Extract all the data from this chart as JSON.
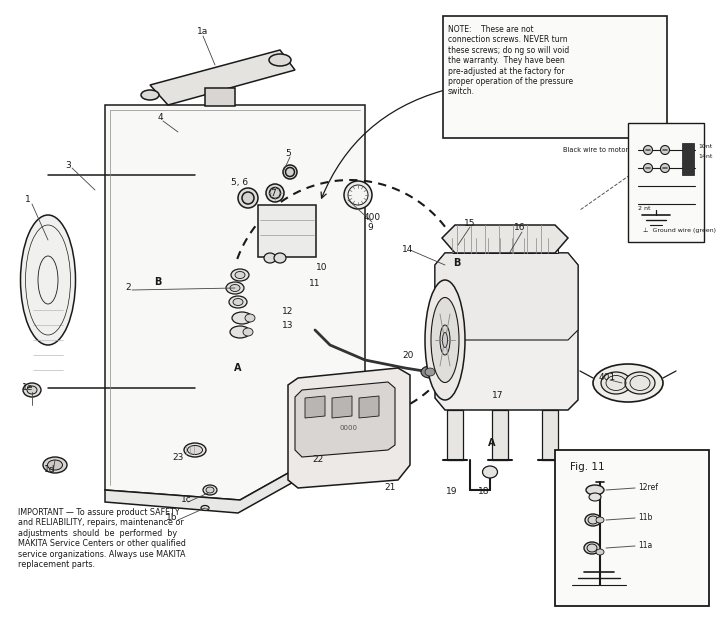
{
  "bg_color": "#ffffff",
  "line_color": "#1a1a1a",
  "text_color": "#1a1a1a",
  "note_text": "NOTE:    These are not\nconnection screws. NEVER turn\nthese screws; do ng so will void\nthe warranty.  They have been\npre-adjusted at the factory for\nproper operation of the pressure\nswitch.",
  "important_text": "IMPORTANT — To assure product SAFETY\nand RELIABILITY, repairs, maintenance or\nadjustments  should  be  performed  by\nMAKITA Service Centers or other qualified\nservice organizations. Always use MAKITA\nreplacement parts.",
  "fig11_label": "Fig. 11",
  "wire_labels": {
    "black_wire": "Black wire to motor",
    "ground": "⊥  Ground wire (green)",
    "10nt": "10nt",
    "14nt": "14nt",
    "2nt": "2 nt"
  },
  "part_labels": [
    [
      "1a",
      193,
      22
    ],
    [
      "1",
      18,
      190
    ],
    [
      "1b",
      162,
      508
    ],
    [
      "1c",
      176,
      490
    ],
    [
      "1d",
      40,
      460
    ],
    [
      "1e",
      18,
      378
    ],
    [
      "2",
      118,
      278
    ],
    [
      "3",
      58,
      155
    ],
    [
      "4",
      150,
      108
    ],
    [
      "5",
      278,
      143
    ],
    [
      "5, 6",
      230,
      172
    ],
    [
      "7",
      263,
      183
    ],
    [
      "9",
      360,
      217
    ],
    [
      "10",
      312,
      258
    ],
    [
      "11",
      305,
      273
    ],
    [
      "12",
      278,
      302
    ],
    [
      "13",
      278,
      315
    ],
    [
      "14",
      398,
      240
    ],
    [
      "15",
      460,
      213
    ],
    [
      "16",
      510,
      218
    ],
    [
      "17",
      488,
      385
    ],
    [
      "18",
      474,
      482
    ],
    [
      "19",
      442,
      482
    ],
    [
      "20",
      398,
      345
    ],
    [
      "21",
      380,
      478
    ],
    [
      "22",
      308,
      450
    ],
    [
      "23",
      168,
      448
    ],
    [
      "400",
      362,
      208
    ],
    [
      "401",
      597,
      368
    ],
    [
      "A",
      228,
      358
    ],
    [
      "A",
      482,
      433
    ],
    [
      "B",
      148,
      272
    ],
    [
      "B",
      447,
      253
    ]
  ]
}
